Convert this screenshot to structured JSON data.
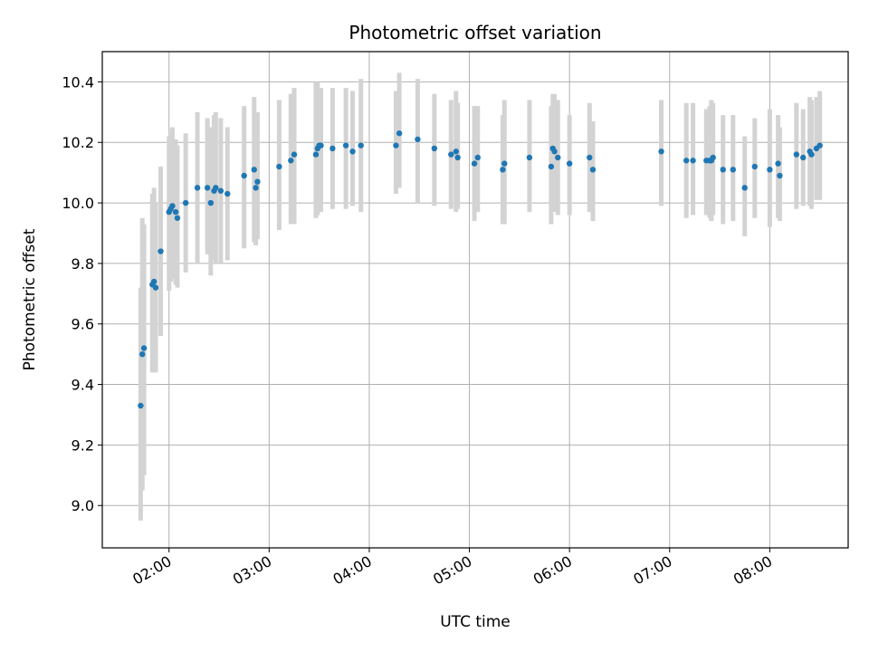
{
  "chart_data": {
    "type": "scatter",
    "title": "Photometric offset variation",
    "xlabel": "UTC time",
    "ylabel": "Photometric offset",
    "x_axis_type": "time",
    "xlim": [
      "01:20",
      "08:47"
    ],
    "ylim": [
      8.86,
      10.5
    ],
    "xticks": [
      "02:00",
      "03:00",
      "04:00",
      "05:00",
      "06:00",
      "07:00",
      "08:00"
    ],
    "yticks": [
      9.0,
      9.2,
      9.4,
      9.6,
      9.8,
      10.0,
      10.2,
      10.4
    ],
    "grid": true,
    "colors": {
      "point": "#1f77b4",
      "errorbar": "#d3d3d3",
      "grid": "#b0b0b0"
    },
    "series": [
      {
        "points": [
          {
            "t": "01:43",
            "y": 9.33,
            "lo": 8.95,
            "hi": 9.72
          },
          {
            "t": "01:44",
            "y": 9.5,
            "lo": 9.05,
            "hi": 9.95
          },
          {
            "t": "01:45",
            "y": 9.52,
            "lo": 9.1,
            "hi": 9.93
          },
          {
            "t": "01:50",
            "y": 9.73,
            "lo": 9.44,
            "hi": 10.03
          },
          {
            "t": "01:51",
            "y": 9.74,
            "lo": 9.44,
            "hi": 10.05
          },
          {
            "t": "01:52",
            "y": 9.72,
            "lo": 9.44,
            "hi": 10.0
          },
          {
            "t": "01:55",
            "y": 9.84,
            "lo": 9.56,
            "hi": 10.12
          },
          {
            "t": "02:00",
            "y": 9.97,
            "lo": 9.71,
            "hi": 10.22
          },
          {
            "t": "02:01",
            "y": 9.98,
            "lo": 9.74,
            "hi": 10.23
          },
          {
            "t": "02:02",
            "y": 9.99,
            "lo": 9.75,
            "hi": 10.25
          },
          {
            "t": "02:04",
            "y": 9.97,
            "lo": 9.73,
            "hi": 10.21
          },
          {
            "t": "02:05",
            "y": 9.95,
            "lo": 9.72,
            "hi": 10.19
          },
          {
            "t": "02:10",
            "y": 10.0,
            "lo": 9.77,
            "hi": 10.23
          },
          {
            "t": "02:17",
            "y": 10.05,
            "lo": 9.8,
            "hi": 10.3
          },
          {
            "t": "02:23",
            "y": 10.05,
            "lo": 9.83,
            "hi": 10.28
          },
          {
            "t": "02:25",
            "y": 10.0,
            "lo": 9.76,
            "hi": 10.25
          },
          {
            "t": "02:27",
            "y": 10.04,
            "lo": 9.81,
            "hi": 10.29
          },
          {
            "t": "02:28",
            "y": 10.05,
            "lo": 9.8,
            "hi": 10.3
          },
          {
            "t": "02:31",
            "y": 10.04,
            "lo": 9.8,
            "hi": 10.28
          },
          {
            "t": "02:35",
            "y": 10.03,
            "lo": 9.81,
            "hi": 10.25
          },
          {
            "t": "02:45",
            "y": 10.09,
            "lo": 9.85,
            "hi": 10.32
          },
          {
            "t": "02:51",
            "y": 10.11,
            "lo": 9.87,
            "hi": 10.35
          },
          {
            "t": "02:52",
            "y": 10.05,
            "lo": 9.86,
            "hi": 10.27
          },
          {
            "t": "02:53",
            "y": 10.07,
            "lo": 9.88,
            "hi": 10.3
          },
          {
            "t": "03:06",
            "y": 10.12,
            "lo": 9.91,
            "hi": 10.34
          },
          {
            "t": "03:13",
            "y": 10.14,
            "lo": 9.93,
            "hi": 10.36
          },
          {
            "t": "03:15",
            "y": 10.16,
            "lo": 9.93,
            "hi": 10.38
          },
          {
            "t": "03:28",
            "y": 10.16,
            "lo": 9.95,
            "hi": 10.4
          },
          {
            "t": "03:29",
            "y": 10.18,
            "lo": 9.96,
            "hi": 10.4
          },
          {
            "t": "03:30",
            "y": 10.19,
            "lo": 9.98,
            "hi": 10.38
          },
          {
            "t": "03:31",
            "y": 10.19,
            "lo": 9.97,
            "hi": 10.38
          },
          {
            "t": "03:38",
            "y": 10.18,
            "lo": 9.98,
            "hi": 10.38
          },
          {
            "t": "03:46",
            "y": 10.19,
            "lo": 9.98,
            "hi": 10.38
          },
          {
            "t": "03:50",
            "y": 10.17,
            "lo": 9.99,
            "hi": 10.37
          },
          {
            "t": "03:55",
            "y": 10.19,
            "lo": 9.97,
            "hi": 10.41
          },
          {
            "t": "04:16",
            "y": 10.19,
            "lo": 10.03,
            "hi": 10.37
          },
          {
            "t": "04:18",
            "y": 10.23,
            "lo": 10.05,
            "hi": 10.43
          },
          {
            "t": "04:29",
            "y": 10.21,
            "lo": 10.0,
            "hi": 10.41
          },
          {
            "t": "04:39",
            "y": 10.18,
            "lo": 9.99,
            "hi": 10.36
          },
          {
            "t": "04:49",
            "y": 10.16,
            "lo": 9.98,
            "hi": 10.34
          },
          {
            "t": "04:52",
            "y": 10.17,
            "lo": 9.97,
            "hi": 10.37
          },
          {
            "t": "04:53",
            "y": 10.15,
            "lo": 9.98,
            "hi": 10.33
          },
          {
            "t": "05:03",
            "y": 10.13,
            "lo": 9.94,
            "hi": 10.32
          },
          {
            "t": "05:05",
            "y": 10.15,
            "lo": 9.97,
            "hi": 10.32
          },
          {
            "t": "05:20",
            "y": 10.11,
            "lo": 9.93,
            "hi": 10.29
          },
          {
            "t": "05:21",
            "y": 10.13,
            "lo": 9.93,
            "hi": 10.34
          },
          {
            "t": "05:36",
            "y": 10.15,
            "lo": 9.97,
            "hi": 10.34
          },
          {
            "t": "05:49",
            "y": 10.12,
            "lo": 9.93,
            "hi": 10.32
          },
          {
            "t": "05:50",
            "y": 10.18,
            "lo": 9.99,
            "hi": 10.36
          },
          {
            "t": "05:51",
            "y": 10.17,
            "lo": 9.97,
            "hi": 10.36
          },
          {
            "t": "05:53",
            "y": 10.15,
            "lo": 9.96,
            "hi": 10.34
          },
          {
            "t": "06:00",
            "y": 10.13,
            "lo": 9.96,
            "hi": 10.29
          },
          {
            "t": "06:12",
            "y": 10.15,
            "lo": 9.97,
            "hi": 10.33
          },
          {
            "t": "06:14",
            "y": 10.11,
            "lo": 9.94,
            "hi": 10.27
          },
          {
            "t": "06:55",
            "y": 10.17,
            "lo": 9.99,
            "hi": 10.34
          },
          {
            "t": "07:10",
            "y": 10.14,
            "lo": 9.95,
            "hi": 10.33
          },
          {
            "t": "07:14",
            "y": 10.14,
            "lo": 9.96,
            "hi": 10.33
          },
          {
            "t": "07:22",
            "y": 10.14,
            "lo": 9.96,
            "hi": 10.31
          },
          {
            "t": "07:24",
            "y": 10.14,
            "lo": 9.95,
            "hi": 10.32
          },
          {
            "t": "07:25",
            "y": 10.14,
            "lo": 9.94,
            "hi": 10.34
          },
          {
            "t": "07:26",
            "y": 10.15,
            "lo": 9.96,
            "hi": 10.33
          },
          {
            "t": "07:32",
            "y": 10.11,
            "lo": 9.93,
            "hi": 10.29
          },
          {
            "t": "07:38",
            "y": 10.11,
            "lo": 9.94,
            "hi": 10.29
          },
          {
            "t": "07:45",
            "y": 10.05,
            "lo": 9.89,
            "hi": 10.22
          },
          {
            "t": "07:51",
            "y": 10.12,
            "lo": 9.95,
            "hi": 10.28
          },
          {
            "t": "08:00",
            "y": 10.11,
            "lo": 9.92,
            "hi": 10.31
          },
          {
            "t": "08:05",
            "y": 10.13,
            "lo": 9.95,
            "hi": 10.29
          },
          {
            "t": "08:06",
            "y": 10.09,
            "lo": 9.94,
            "hi": 10.25
          },
          {
            "t": "08:16",
            "y": 10.16,
            "lo": 9.98,
            "hi": 10.33
          },
          {
            "t": "08:20",
            "y": 10.15,
            "lo": 9.99,
            "hi": 10.31
          },
          {
            "t": "08:24",
            "y": 10.17,
            "lo": 9.99,
            "hi": 10.35
          },
          {
            "t": "08:25",
            "y": 10.16,
            "lo": 9.98,
            "hi": 10.34
          },
          {
            "t": "08:28",
            "y": 10.18,
            "lo": 10.01,
            "hi": 10.35
          },
          {
            "t": "08:30",
            "y": 10.19,
            "lo": 10.01,
            "hi": 10.37
          }
        ]
      }
    ]
  }
}
